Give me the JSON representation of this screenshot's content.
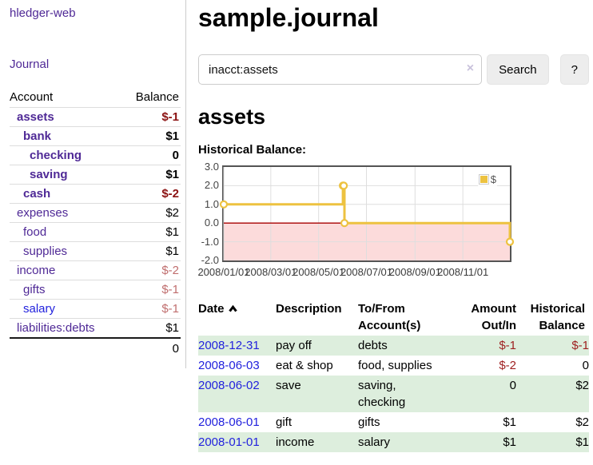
{
  "colors": {
    "link_purple": "#4f2996",
    "link_blue": "#2222dd",
    "negative_strong": "#8b1212",
    "negative_soft": "#c06e6e",
    "register_negative": "#9e1f1f",
    "row_stripe_green": "#ddeedd",
    "chart_line_gold": "#edc240",
    "chart_negative_fill": "#fcdbdb",
    "chart_zero_line": "#a80000",
    "chart_border": "#545454"
  },
  "sidebar": {
    "app_title": "hledger-web",
    "journal_link": "Journal",
    "accounts_table": {
      "col_account": "Account",
      "col_balance": "Balance",
      "rows": [
        {
          "name": "assets",
          "balance": "$-1",
          "depth": 1,
          "bold": true,
          "link_color": "purple",
          "balance_class": "neg-strong"
        },
        {
          "name": "bank",
          "balance": "$1",
          "depth": 2,
          "bold": true,
          "link_color": "purple",
          "balance_class": ""
        },
        {
          "name": "checking",
          "balance": "0",
          "depth": 3,
          "bold": true,
          "link_color": "purple",
          "balance_class": ""
        },
        {
          "name": "saving",
          "balance": "$1",
          "depth": 3,
          "bold": true,
          "link_color": "purple",
          "balance_class": ""
        },
        {
          "name": "cash",
          "balance": "$-2",
          "depth": 2,
          "bold": true,
          "link_color": "purple",
          "balance_class": "neg-strong"
        },
        {
          "name": "expenses",
          "balance": "$2",
          "depth": 1,
          "bold": false,
          "link_color": "purple",
          "balance_class": ""
        },
        {
          "name": "food",
          "balance": "$1",
          "depth": 2,
          "bold": false,
          "link_color": "purple",
          "balance_class": ""
        },
        {
          "name": "supplies",
          "balance": "$1",
          "depth": 2,
          "bold": false,
          "link_color": "purple",
          "balance_class": ""
        },
        {
          "name": "income",
          "balance": "$-2",
          "depth": 1,
          "bold": false,
          "link_color": "purple",
          "balance_class": "neg-soft"
        },
        {
          "name": "gifts",
          "balance": "$-1",
          "depth": 2,
          "bold": false,
          "link_color": "purple",
          "balance_class": "neg-soft"
        },
        {
          "name": "salary",
          "balance": "$-1",
          "depth": 2,
          "bold": false,
          "link_color": "blue",
          "balance_class": "neg-soft"
        },
        {
          "name": "liabilities:debts",
          "balance": "$1",
          "depth": 1,
          "bold": false,
          "link_color": "purple",
          "balance_class": ""
        }
      ],
      "total": "0"
    }
  },
  "main": {
    "title": "sample.journal",
    "search": {
      "value": "inacct:assets",
      "clear_icon": "×",
      "button_label": "Search",
      "help_label": "?"
    },
    "account_heading": "assets",
    "chart_title": "Historical Balance:"
  },
  "chart_data": {
    "type": "line",
    "step": true,
    "title": "Historical Balance:",
    "series": [
      {
        "name": "$",
        "color": "#edc240",
        "points": [
          [
            "2008-01-01",
            1
          ],
          [
            "2008-06-01",
            2
          ],
          [
            "2008-06-02",
            2
          ],
          [
            "2008-06-03",
            0
          ],
          [
            "2008-12-31",
            -1
          ]
        ]
      }
    ],
    "x_range": [
      "2008-01-01",
      "2008-12-31"
    ],
    "ylim": [
      -2,
      3
    ],
    "x_ticks": [
      "2008/01/01",
      "2008/03/01",
      "2008/05/01",
      "2008/07/01",
      "2008/09/01",
      "2008/11/01"
    ],
    "y_ticks": [
      "3.0",
      "2.0",
      "1.0",
      "0.0",
      "-1.0",
      "-2.0"
    ],
    "grid": true,
    "legend_position": "top-right",
    "negative_fill": "#fcdbdb",
    "zero_line_color": "#a80000",
    "grid_color": "#dedede"
  },
  "register": {
    "headers": {
      "date": "Date",
      "date_sort_icon": "chevron-up",
      "description": "Description",
      "accounts": "To/From Account(s)",
      "amount": "Amount Out/In",
      "balance": "Historical Balance"
    },
    "rows": [
      {
        "date": "2008-12-31",
        "description": "pay off",
        "accounts": "debts",
        "amount": "$-1",
        "amount_negative": true,
        "balance": "$-1",
        "balance_negative": true
      },
      {
        "date": "2008-06-03",
        "description": "eat & shop",
        "accounts": "food, supplies",
        "amount": "$-2",
        "amount_negative": true,
        "balance": "0",
        "balance_negative": false
      },
      {
        "date": "2008-06-02",
        "description": "save",
        "accounts": "saving, checking",
        "amount": "0",
        "amount_negative": false,
        "balance": "$2",
        "balance_negative": false
      },
      {
        "date": "2008-06-01",
        "description": "gift",
        "accounts": "gifts",
        "amount": "$1",
        "amount_negative": false,
        "balance": "$2",
        "balance_negative": false
      },
      {
        "date": "2008-01-01",
        "description": "income",
        "accounts": "salary",
        "amount": "$1",
        "amount_negative": false,
        "balance": "$1",
        "balance_negative": false
      }
    ]
  }
}
